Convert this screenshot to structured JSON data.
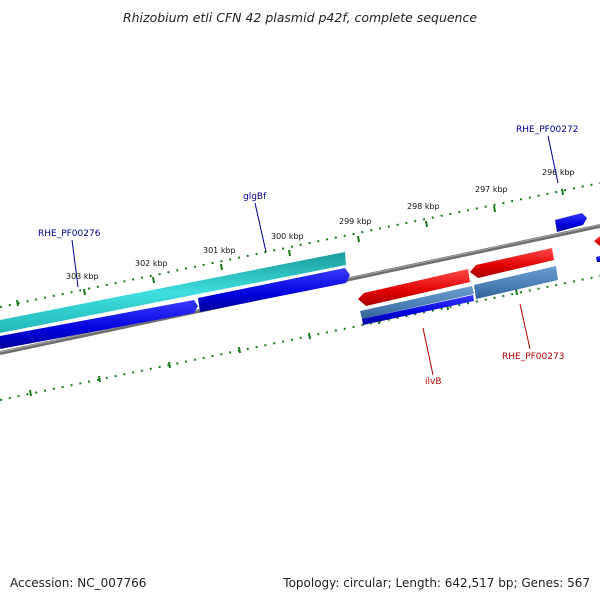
{
  "header": {
    "title": "Rhizobium etli CFN 42 plasmid p42f, complete sequence"
  },
  "footer": {
    "accession": "Accession: NC_007766",
    "summary": "Topology: circular; Length: 642,517 bp; Genes: 567"
  },
  "scale": {
    "tick_labels": [
      "303 kbp",
      "302 kbp",
      "301 kbp",
      "300 kbp",
      "299 kbp",
      "298 kbp",
      "297 kbp",
      "296 kbp"
    ]
  },
  "genes": {
    "labels": [
      {
        "text": "RHE_PF00276",
        "color": "#00008b"
      },
      {
        "text": "glgBf",
        "color": "#00008b"
      },
      {
        "text": "RHE_PF00272",
        "color": "#00008b"
      },
      {
        "text": "ilvB",
        "color": "#b00000"
      },
      {
        "text": "RHE_PF00273",
        "color": "#b00000"
      }
    ]
  },
  "colors": {
    "cds_forward": "#0000e6",
    "cds_reverse": "#e80000",
    "rna_cyan": "#2fd0d0",
    "rna_steel": "#4a7fb5",
    "backbone": "#808080",
    "ticks": "#1a7a1a"
  }
}
